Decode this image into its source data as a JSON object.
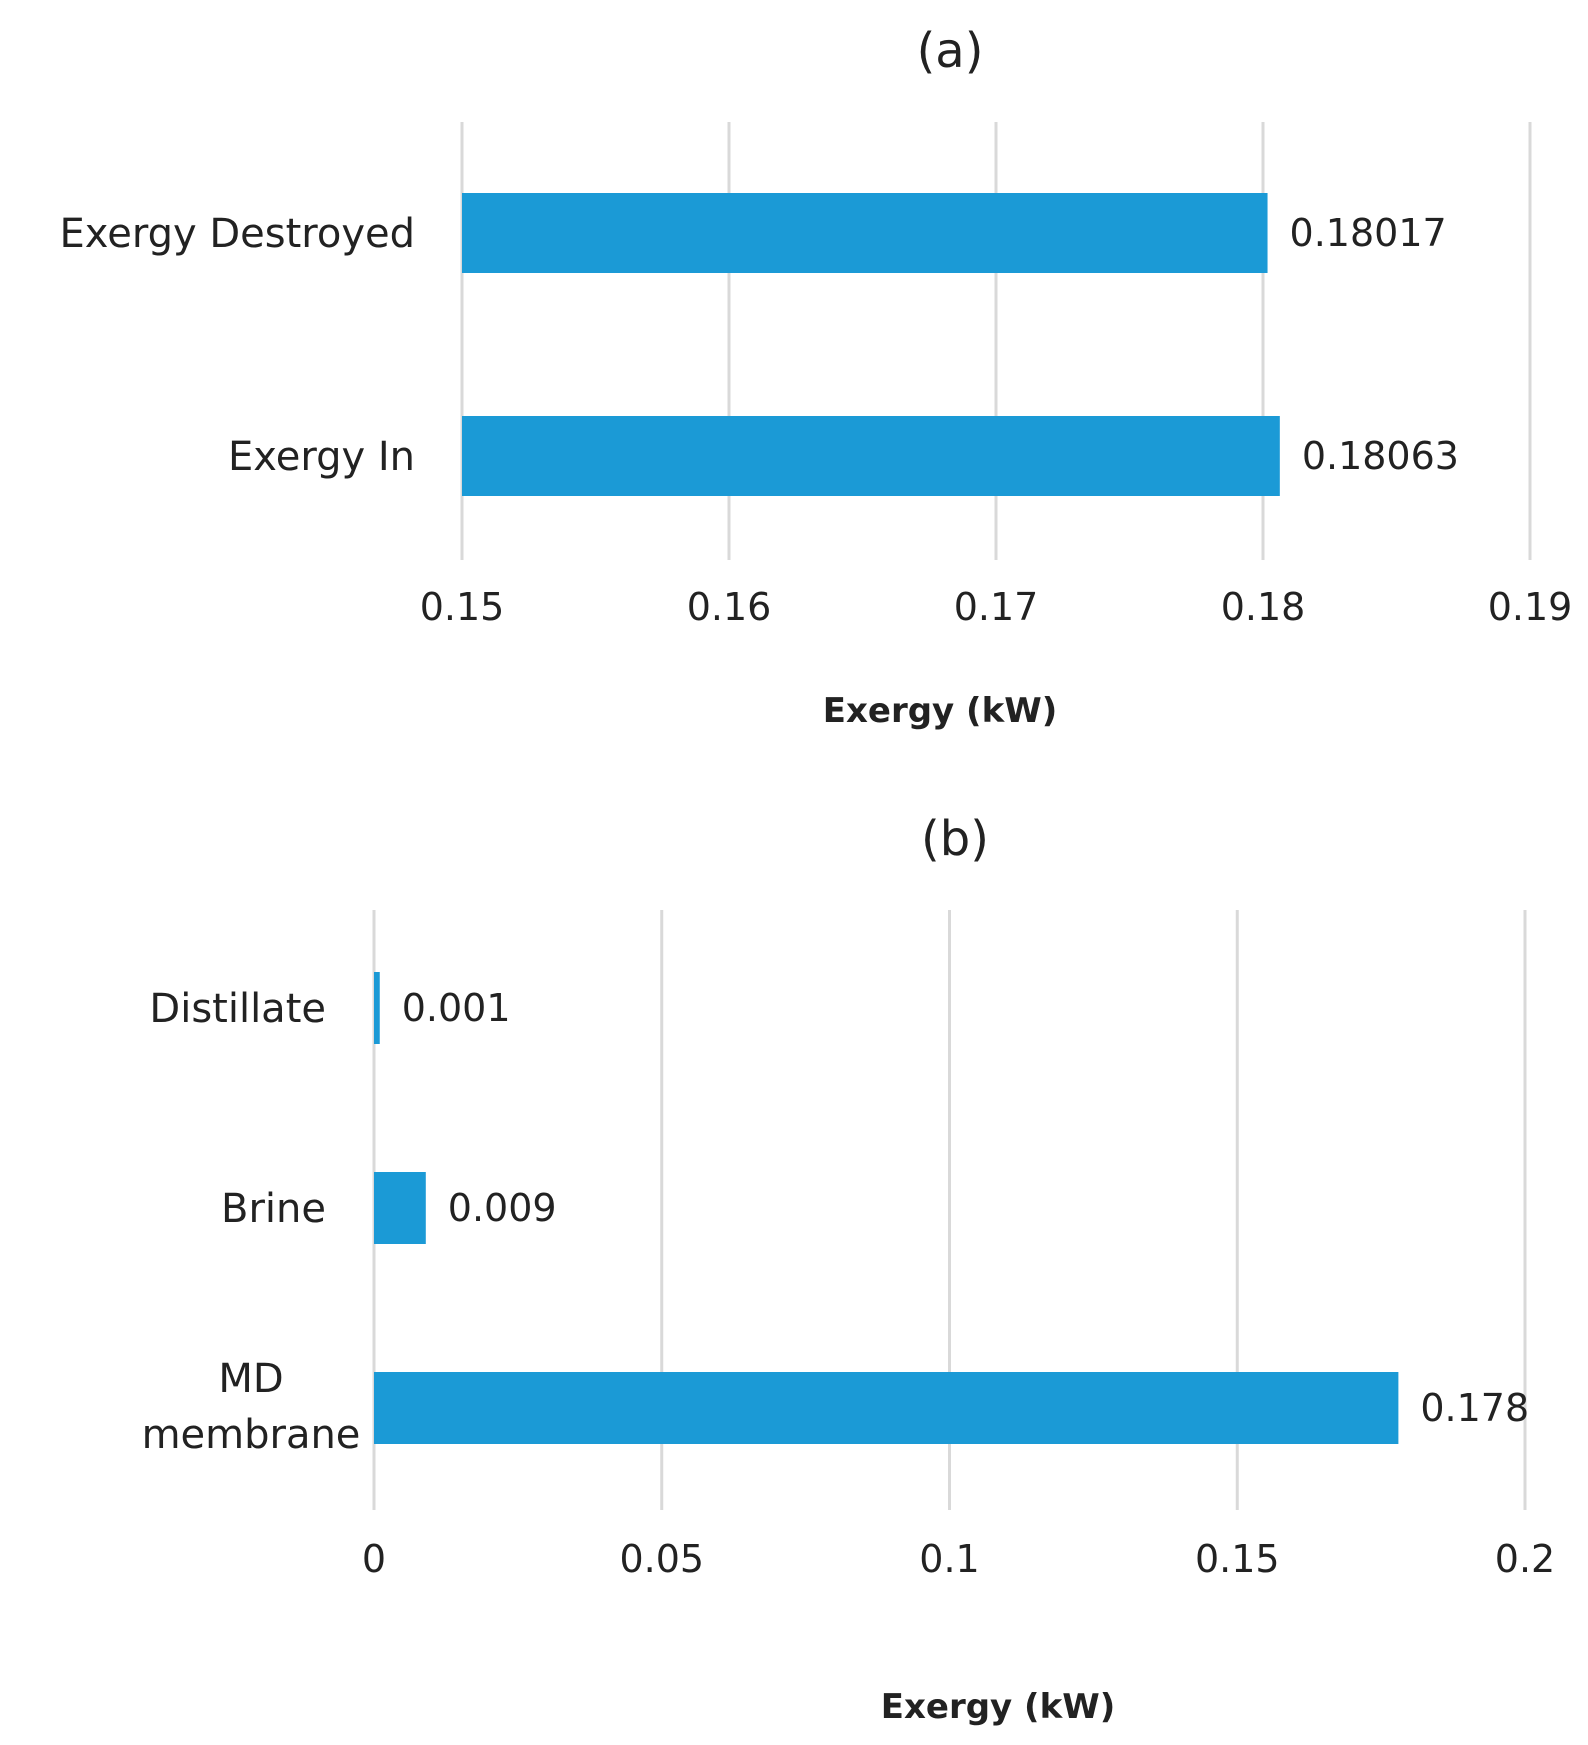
{
  "chart_data": [
    {
      "type": "bar",
      "orientation": "horizontal",
      "title": "(a)",
      "categories": [
        "Exergy Destroyed",
        "Exergy In"
      ],
      "values": [
        0.18017,
        0.18063
      ],
      "value_labels": [
        "0.18017",
        "0.18063"
      ],
      "xlabel": "Exergy (kW)",
      "ylabel": "",
      "xlim": [
        0.15,
        0.19
      ],
      "xticks": [
        0.15,
        0.16,
        0.17,
        0.18,
        0.19
      ],
      "xtick_labels": [
        "0.15",
        "0.16",
        "0.17",
        "0.18",
        "0.19"
      ],
      "grid": true,
      "color": "#1b9ad6"
    },
    {
      "type": "bar",
      "orientation": "horizontal",
      "title": "(b)",
      "categories": [
        "Distillate",
        "Brine",
        "MD membrane"
      ],
      "values": [
        0.001,
        0.009,
        0.178
      ],
      "value_labels": [
        "0.001",
        "0.009",
        "0.178"
      ],
      "xlabel": "Exergy (kW)",
      "ylabel": "",
      "xlim": [
        0,
        0.2
      ],
      "xticks": [
        0,
        0.05,
        0.1,
        0.15,
        0.2
      ],
      "xtick_labels": [
        "0",
        "0.05",
        "0.1",
        "0.15",
        "0.2"
      ],
      "grid": true,
      "color": "#1b9ad6"
    }
  ]
}
